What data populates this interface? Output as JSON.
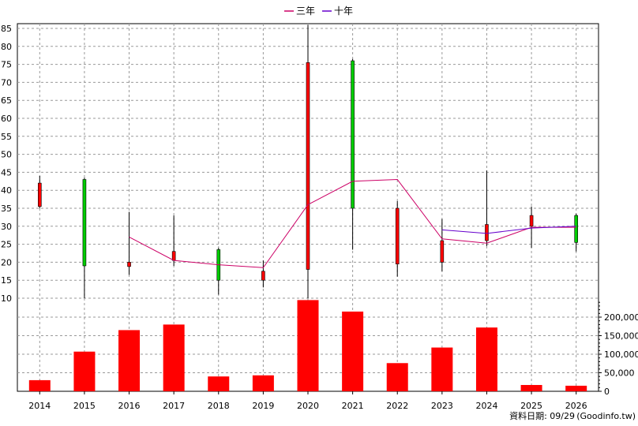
{
  "chart_data": {
    "type": "candlestick",
    "categories": [
      "2014",
      "2015",
      "2016",
      "2017",
      "2018",
      "2019",
      "2020",
      "2021",
      "2022",
      "2023",
      "2024",
      "2025",
      "2026"
    ],
    "legend": [
      {
        "label": "三年",
        "color": "#cc0066"
      },
      {
        "label": "十年",
        "color": "#6600cc"
      }
    ],
    "price_axis": {
      "ylim": [
        10,
        86
      ],
      "ticks": [
        10,
        15,
        20,
        25,
        30,
        35,
        40,
        45,
        50,
        55,
        60,
        65,
        70,
        75,
        80,
        85
      ],
      "tick_labels": [
        "10",
        "15",
        "20",
        "25",
        "30",
        "35",
        "40",
        "45",
        "50",
        "55",
        "60",
        "65",
        "70",
        "75",
        "80",
        "85"
      ]
    },
    "volume_axis": {
      "ylim": [
        0,
        250000
      ],
      "ticks": [
        0,
        50000,
        100000,
        150000,
        200000
      ],
      "tick_labels": [
        "0",
        "50,000",
        "100,000",
        "150,000",
        "200,000"
      ]
    },
    "candles": [
      {
        "year": "2014",
        "open": 42.0,
        "close": 35.5,
        "high": 44.0,
        "low": 35.0
      },
      {
        "year": "2015",
        "open": 19.0,
        "close": 43.0,
        "high": 43.5,
        "low": 10.0
      },
      {
        "year": "2016",
        "open": 20.0,
        "close": 18.8,
        "high": 34.0,
        "low": 16.5
      },
      {
        "year": "2017",
        "open": 23.0,
        "close": 20.5,
        "high": 33.0,
        "low": 19.0
      },
      {
        "year": "2018",
        "open": 15.0,
        "close": 23.5,
        "high": 24.0,
        "low": 11.0
      },
      {
        "year": "2019",
        "open": 17.5,
        "close": 15.0,
        "high": 20.5,
        "low": 13.0
      },
      {
        "year": "2020",
        "open": 75.5,
        "close": 18.0,
        "high": 86.0,
        "low": 10.0
      },
      {
        "year": "2021",
        "open": 35.0,
        "close": 76.0,
        "high": 76.5,
        "low": 23.5
      },
      {
        "year": "2022",
        "open": 35.0,
        "close": 19.5,
        "high": 37.0,
        "low": 16.0
      },
      {
        "year": "2023",
        "open": 26.0,
        "close": 20.0,
        "high": 32.0,
        "low": 17.5
      },
      {
        "year": "2024",
        "open": 30.5,
        "close": 26.0,
        "high": 45.5,
        "low": 24.5
      },
      {
        "year": "2025",
        "open": 33.0,
        "close": 30.0,
        "high": 35.5,
        "low": 24.0
      },
      {
        "year": "2026",
        "open": 25.5,
        "close": 33.0,
        "high": 33.5,
        "low": 23.0
      }
    ],
    "series": [
      {
        "name": "三年",
        "color": "#cc0066",
        "values": [
          null,
          null,
          27.0,
          20.5,
          19.3,
          18.5,
          36.0,
          42.5,
          43.0,
          26.5,
          25.3,
          29.7,
          29.7
        ]
      },
      {
        "name": "十年",
        "color": "#6600cc",
        "values": [
          null,
          null,
          null,
          null,
          null,
          null,
          null,
          null,
          null,
          29.0,
          28.0,
          29.5,
          30.0
        ]
      }
    ],
    "volume": [
      30000,
      107000,
      165000,
      180000,
      40000,
      43000,
      246000,
      215000,
      76000,
      118000,
      172000,
      17000,
      15000
    ],
    "up_color": "#00cc00",
    "down_color": "#ff0000",
    "grid": true
  },
  "footer": {
    "date_label": "資料日期: 09/29",
    "source_label": "(Goodinfo.tw)"
  }
}
